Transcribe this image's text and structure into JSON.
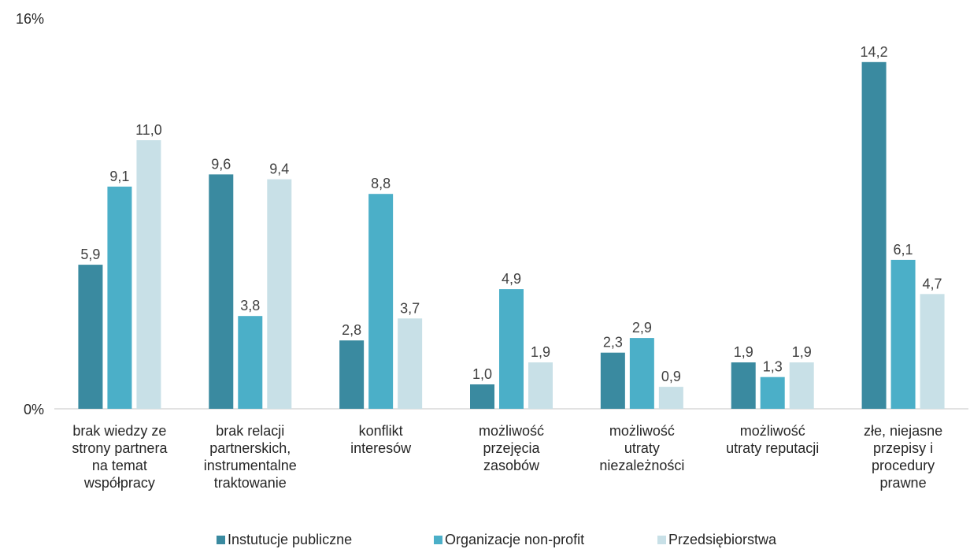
{
  "chart_data": {
    "type": "bar",
    "title": "",
    "xlabel": "",
    "ylabel": "",
    "ylim": [
      0,
      16
    ],
    "y_ticks": [
      "0%",
      "16%"
    ],
    "grid": false,
    "legend_position": "bottom",
    "categories": [
      [
        "brak wiedzy ze",
        "strony partnera",
        "na temat",
        "współpracy"
      ],
      [
        "brak relacji",
        "partnerskich,",
        "instrumentalne",
        "traktowanie"
      ],
      [
        "konflikt",
        "interesów"
      ],
      [
        "możliwość",
        "przejęcia",
        "zasobów"
      ],
      [
        "możliwość",
        "utraty",
        "niezależności"
      ],
      [
        "możliwość",
        "utraty reputacji"
      ],
      [
        "złe, niejasne",
        "przepisy i",
        "procedury",
        "prawne"
      ]
    ],
    "series": [
      {
        "name": "Instutucje publiczne",
        "color": "#3a8aa0",
        "values": [
          5.9,
          9.6,
          2.8,
          1.0,
          2.3,
          1.9,
          14.2
        ],
        "labels": [
          "5,9",
          "9,6",
          "2,8",
          "1,0",
          "2,3",
          "1,9",
          "14,2"
        ]
      },
      {
        "name": "Organizacje non-profit",
        "color": "#4bafc8",
        "values": [
          9.1,
          3.8,
          8.8,
          4.9,
          2.9,
          1.3,
          6.1
        ],
        "labels": [
          "9,1",
          "3,8",
          "8,8",
          "4,9",
          "2,9",
          "1,3",
          "6,1"
        ]
      },
      {
        "name": "Przedsiębiorstwa",
        "color": "#c8e0e7",
        "values": [
          11.0,
          9.4,
          3.7,
          1.9,
          0.9,
          1.9,
          4.7
        ],
        "labels": [
          "11,0",
          "9,4",
          "3,7",
          "1,9",
          "0,9",
          "1,9",
          "4,7"
        ]
      }
    ]
  }
}
